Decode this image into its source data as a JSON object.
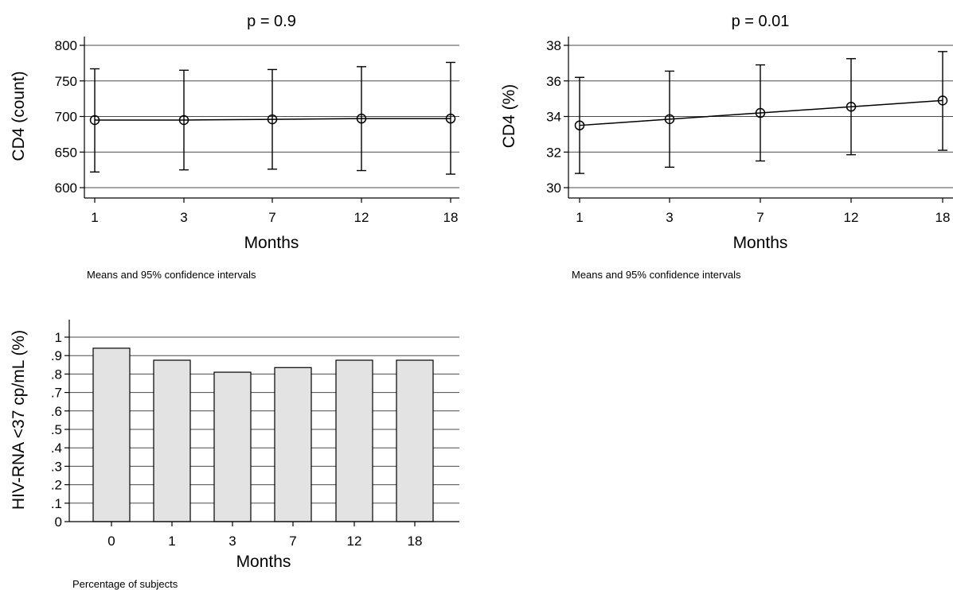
{
  "chart_data": [
    {
      "type": "line",
      "title": "p = 0.9",
      "xlabel": "Months",
      "ylabel": "CD4 (count)",
      "caption": "Means and 95% confidence intervals",
      "categories": [
        "1",
        "3",
        "7",
        "12",
        "18"
      ],
      "values": [
        695,
        695,
        696,
        697,
        697
      ],
      "ci_lower": [
        622,
        625,
        626,
        624,
        619
      ],
      "ci_upper": [
        767,
        765,
        766,
        770,
        776
      ],
      "ylim": [
        600,
        800
      ],
      "yticks": [
        "600",
        "650",
        "700",
        "750",
        "800"
      ],
      "grid": true
    },
    {
      "type": "line",
      "title": "p = 0.01",
      "xlabel": "Months",
      "ylabel": "CD4 (%)",
      "caption": "Means and 95% confidence intervals",
      "categories": [
        "1",
        "3",
        "7",
        "12",
        "18"
      ],
      "values": [
        33.5,
        33.85,
        34.2,
        34.55,
        34.9
      ],
      "ci_lower": [
        30.8,
        31.15,
        31.5,
        31.85,
        32.1
      ],
      "ci_upper": [
        36.2,
        36.55,
        36.9,
        37.25,
        37.65
      ],
      "ylim": [
        30,
        38
      ],
      "yticks": [
        "30",
        "32",
        "34",
        "36",
        "38"
      ],
      "grid": true
    },
    {
      "type": "bar",
      "xlabel": "Months",
      "ylabel": "HIV-RNA <37 cp/mL (%)",
      "caption": "Percentage of subjects",
      "categories": [
        "0",
        "1",
        "3",
        "7",
        "12",
        "18"
      ],
      "values": [
        0.94,
        0.875,
        0.81,
        0.835,
        0.875,
        0.875
      ],
      "ylim": [
        0,
        1
      ],
      "yticks": [
        "0",
        ".1",
        ".2",
        ".3",
        ".4",
        ".5",
        ".6",
        ".7",
        ".8",
        ".9",
        "1"
      ],
      "grid": true
    }
  ]
}
